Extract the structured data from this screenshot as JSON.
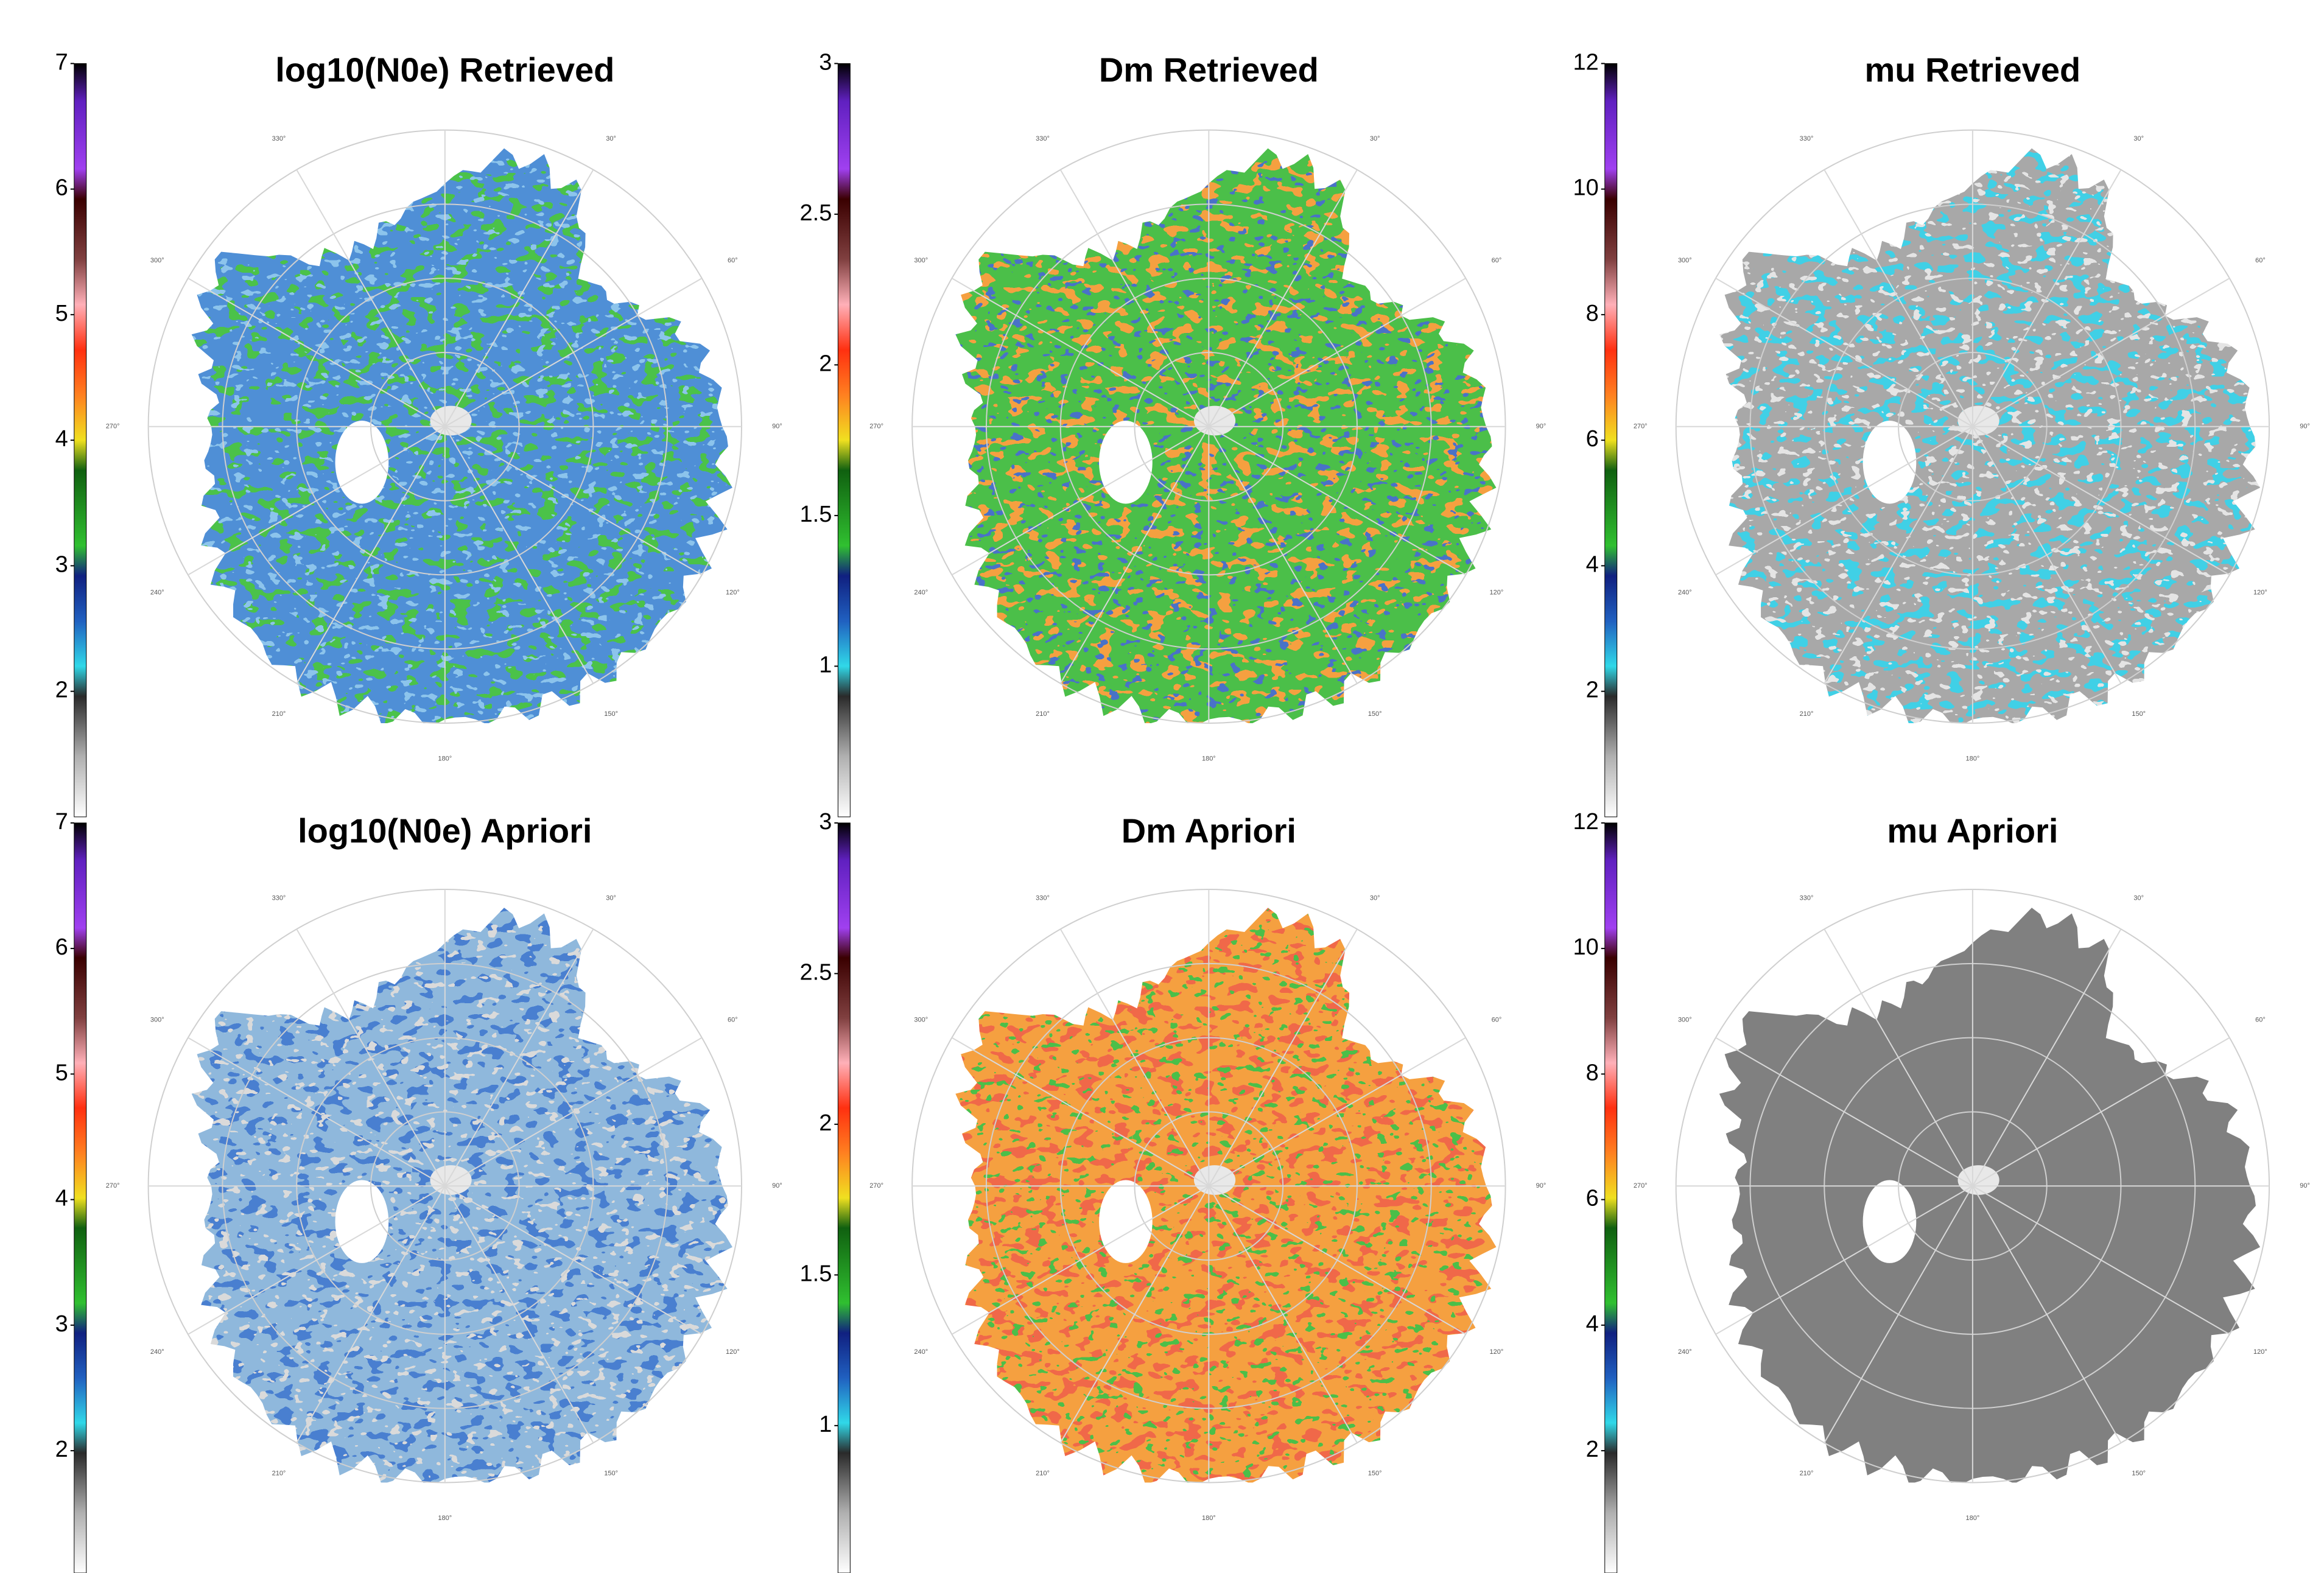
{
  "chart_data": [
    {
      "type": "polar",
      "title": "log10(N0e) Retrieved",
      "colorbar": {
        "lim": [
          1,
          7
        ],
        "ticks": [
          2,
          3,
          4,
          5,
          6,
          7
        ]
      },
      "theta_ticks": [
        {
          "value": 330,
          "label": "330°"
        },
        {
          "value": 30,
          "label": "30°"
        },
        {
          "value": 300,
          "label": "300°"
        },
        {
          "value": 60,
          "label": "60°"
        },
        {
          "value": 270,
          "label": "270°"
        },
        {
          "value": 90,
          "label": "90°"
        },
        {
          "value": 240,
          "label": "240°"
        },
        {
          "value": 120,
          "label": "120°"
        },
        {
          "value": 210,
          "label": "210°"
        },
        {
          "value": 150,
          "label": "150°"
        },
        {
          "value": 180,
          "label": "180°"
        }
      ]
    },
    {
      "type": "polar",
      "title": "Dm Retrieved",
      "colorbar": {
        "lim": [
          0.5,
          3
        ],
        "ticks": [
          1,
          1.5,
          2,
          2.5,
          3
        ]
      },
      "theta_ticks": [
        {
          "value": 330,
          "label": "330°"
        },
        {
          "value": 30,
          "label": "30°"
        },
        {
          "value": 300,
          "label": "300°"
        },
        {
          "value": 60,
          "label": "60°"
        },
        {
          "value": 270,
          "label": "270°"
        },
        {
          "value": 90,
          "label": "90°"
        },
        {
          "value": 240,
          "label": "240°"
        },
        {
          "value": 120,
          "label": "120°"
        },
        {
          "value": 210,
          "label": "210°"
        },
        {
          "value": 150,
          "label": "150°"
        },
        {
          "value": 180,
          "label": "180°"
        }
      ]
    },
    {
      "type": "polar",
      "title": "mu Retrieved",
      "colorbar": {
        "lim": [
          0,
          12
        ],
        "ticks": [
          2,
          4,
          6,
          8,
          10,
          12
        ]
      },
      "theta_ticks": [
        {
          "value": 330,
          "label": "330°"
        },
        {
          "value": 30,
          "label": "30°"
        },
        {
          "value": 300,
          "label": "300°"
        },
        {
          "value": 60,
          "label": "60°"
        },
        {
          "value": 270,
          "label": "270°"
        },
        {
          "value": 90,
          "label": "90°"
        },
        {
          "value": 240,
          "label": "240°"
        },
        {
          "value": 120,
          "label": "120°"
        },
        {
          "value": 210,
          "label": "210°"
        },
        {
          "value": 150,
          "label": "150°"
        },
        {
          "value": 180,
          "label": "180°"
        }
      ]
    },
    {
      "type": "polar",
      "title": "log10(N0e) Apriori",
      "colorbar": {
        "lim": [
          1,
          7
        ],
        "ticks": [
          2,
          3,
          4,
          5,
          6,
          7
        ]
      },
      "theta_ticks": [
        {
          "value": 330,
          "label": "330°"
        },
        {
          "value": 30,
          "label": "30°"
        },
        {
          "value": 300,
          "label": "300°"
        },
        {
          "value": 60,
          "label": "60°"
        },
        {
          "value": 270,
          "label": "270°"
        },
        {
          "value": 90,
          "label": "90°"
        },
        {
          "value": 240,
          "label": "240°"
        },
        {
          "value": 120,
          "label": "120°"
        },
        {
          "value": 210,
          "label": "210°"
        },
        {
          "value": 150,
          "label": "150°"
        },
        {
          "value": 180,
          "label": "180°"
        }
      ]
    },
    {
      "type": "polar",
      "title": "Dm Apriori",
      "colorbar": {
        "lim": [
          0.5,
          3
        ],
        "ticks": [
          1,
          1.5,
          2,
          2.5,
          3
        ]
      },
      "theta_ticks": [
        {
          "value": 330,
          "label": "330°"
        },
        {
          "value": 30,
          "label": "30°"
        },
        {
          "value": 300,
          "label": "300°"
        },
        {
          "value": 60,
          "label": "60°"
        },
        {
          "value": 270,
          "label": "270°"
        },
        {
          "value": 90,
          "label": "90°"
        },
        {
          "value": 240,
          "label": "240°"
        },
        {
          "value": 120,
          "label": "120°"
        },
        {
          "value": 210,
          "label": "210°"
        },
        {
          "value": 150,
          "label": "150°"
        },
        {
          "value": 180,
          "label": "180°"
        }
      ]
    },
    {
      "type": "polar",
      "title": "mu Apriori",
      "colorbar": {
        "lim": [
          0,
          12
        ],
        "ticks": [
          2,
          4,
          6,
          8,
          10,
          12
        ]
      },
      "theta_ticks": [
        {
          "value": 330,
          "label": "330°"
        },
        {
          "value": 30,
          "label": "30°"
        },
        {
          "value": 300,
          "label": "300°"
        },
        {
          "value": 60,
          "label": "60°"
        },
        {
          "value": 270,
          "label": "270°"
        },
        {
          "value": 90,
          "label": "90°"
        },
        {
          "value": 240,
          "label": "240°"
        },
        {
          "value": 120,
          "label": "120°"
        },
        {
          "value": 210,
          "label": "210°"
        },
        {
          "value": 150,
          "label": "150°"
        },
        {
          "value": 180,
          "label": "180°"
        }
      ]
    }
  ]
}
